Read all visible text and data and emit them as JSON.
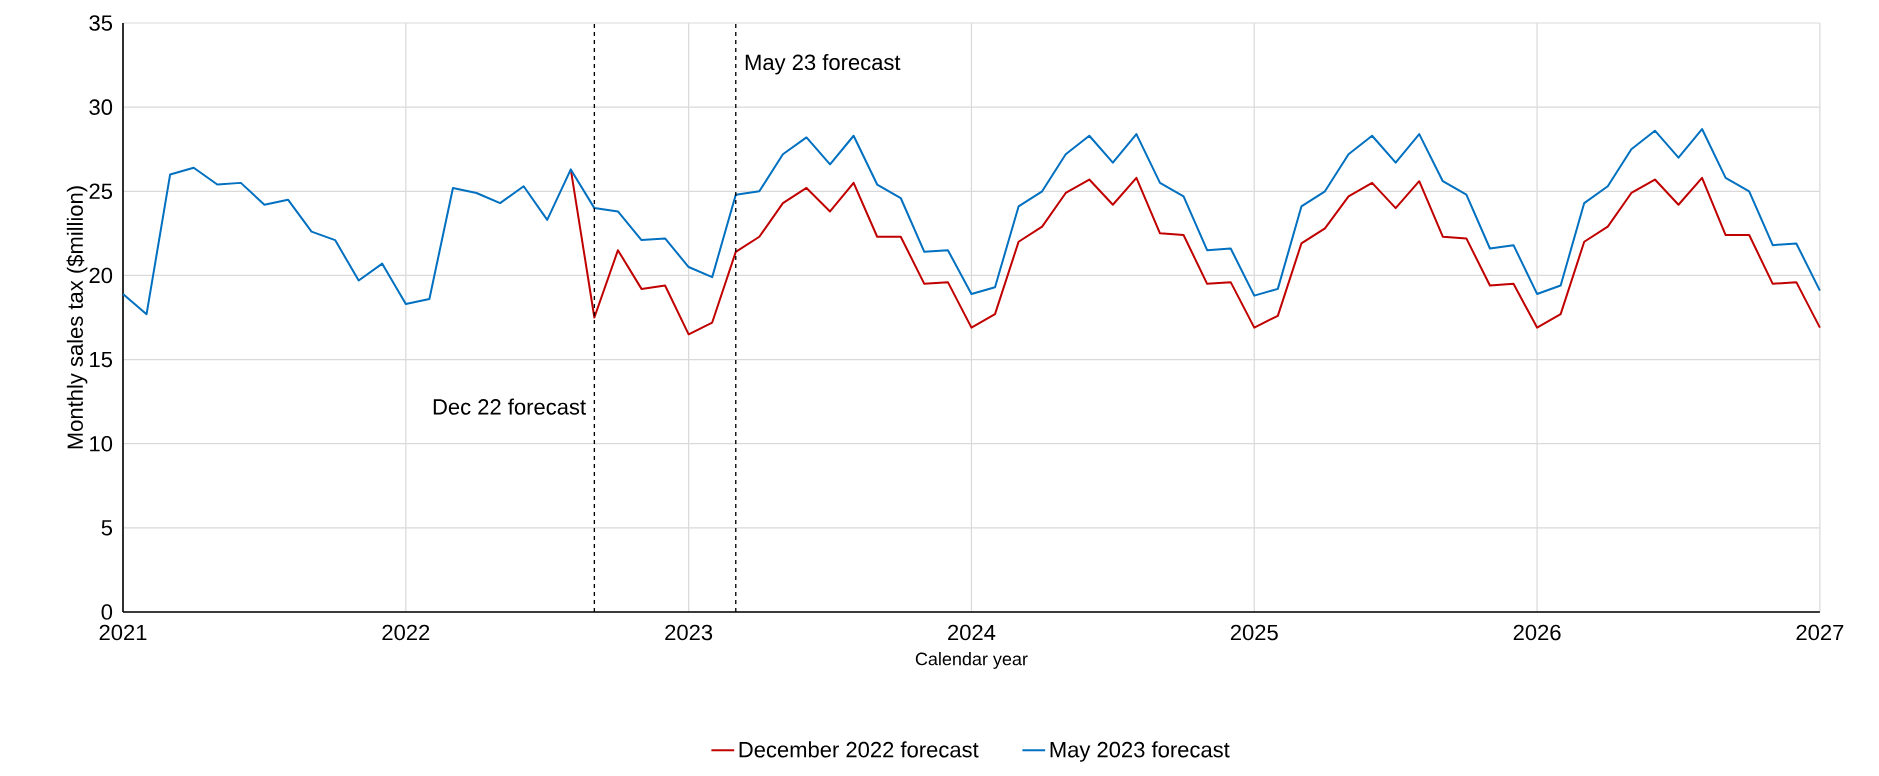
{
  "chart_data": {
    "type": "line",
    "xlabel": "Calendar year",
    "ylabel": "Monthly sales tax ($million)",
    "xlim": [
      "2021-01",
      "2027-01"
    ],
    "xticks": [
      "2021",
      "2022",
      "2023",
      "2024",
      "2025",
      "2026",
      "2027"
    ],
    "ylim": [
      0,
      35
    ],
    "yticks": [
      0,
      5,
      10,
      15,
      20,
      25,
      30,
      35
    ],
    "grid": true,
    "legend": "bottom",
    "ref_lines": [
      {
        "axis": "x",
        "value": "2022-09",
        "label": "Dec 22 forecast",
        "color": "#000000",
        "line_style": "dashed"
      },
      {
        "axis": "x",
        "value": "2023-03",
        "label": "May 23 forecast",
        "color": "#000000",
        "line_style": "dashed"
      }
    ],
    "series": [
      {
        "name": "December 2022 forecast",
        "color": "#c00000",
        "x": [
          "2022-08",
          "2022-09",
          "2022-10",
          "2022-11",
          "2022-12",
          "2023-01",
          "2023-02",
          "2023-03",
          "2023-04",
          "2023-05",
          "2023-06",
          "2023-07",
          "2023-08",
          "2023-09",
          "2023-10",
          "2023-11",
          "2023-12",
          "2024-01",
          "2024-02",
          "2024-03",
          "2024-04",
          "2024-05",
          "2024-06",
          "2024-07",
          "2024-08",
          "2024-09",
          "2024-10",
          "2024-11",
          "2024-12",
          "2025-01",
          "2025-02",
          "2025-03",
          "2025-04",
          "2025-05",
          "2025-06",
          "2025-07",
          "2025-08",
          "2025-09",
          "2025-10",
          "2025-11",
          "2025-12",
          "2026-01",
          "2026-02",
          "2026-03",
          "2026-04",
          "2026-05",
          "2026-06",
          "2026-07",
          "2026-08",
          "2026-09",
          "2026-10",
          "2026-11",
          "2026-12",
          "2027-01"
        ],
        "values": [
          26.3,
          17.5,
          21.5,
          19.2,
          19.4,
          16.5,
          17.2,
          21.4,
          22.3,
          24.3,
          25.2,
          23.8,
          25.5,
          22.3,
          22.3,
          19.5,
          19.6,
          16.9,
          17.7,
          22.0,
          22.9,
          24.9,
          25.7,
          24.2,
          25.8,
          22.5,
          22.4,
          19.5,
          19.6,
          16.9,
          17.6,
          21.9,
          22.8,
          24.7,
          25.5,
          24.0,
          25.6,
          22.3,
          22.2,
          19.4,
          19.5,
          16.9,
          17.7,
          22.0,
          22.9,
          24.9,
          25.7,
          24.2,
          25.8,
          22.4,
          22.4,
          19.5,
          19.6,
          16.9
        ]
      },
      {
        "name": "May 2023 forecast",
        "color": "#0070c0",
        "x": [
          "2021-01",
          "2021-02",
          "2021-03",
          "2021-04",
          "2021-05",
          "2021-06",
          "2021-07",
          "2021-08",
          "2021-09",
          "2021-10",
          "2021-11",
          "2021-12",
          "2022-01",
          "2022-02",
          "2022-03",
          "2022-04",
          "2022-05",
          "2022-06",
          "2022-07",
          "2022-08",
          "2022-09",
          "2022-10",
          "2022-11",
          "2022-12",
          "2023-01",
          "2023-02",
          "2023-03",
          "2023-04",
          "2023-05",
          "2023-06",
          "2023-07",
          "2023-08",
          "2023-09",
          "2023-10",
          "2023-11",
          "2023-12",
          "2024-01",
          "2024-02",
          "2024-03",
          "2024-04",
          "2024-05",
          "2024-06",
          "2024-07",
          "2024-08",
          "2024-09",
          "2024-10",
          "2024-11",
          "2024-12",
          "2025-01",
          "2025-02",
          "2025-03",
          "2025-04",
          "2025-05",
          "2025-06",
          "2025-07",
          "2025-08",
          "2025-09",
          "2025-10",
          "2025-11",
          "2025-12",
          "2026-01",
          "2026-02",
          "2026-03",
          "2026-04",
          "2026-05",
          "2026-06",
          "2026-07",
          "2026-08",
          "2026-09",
          "2026-10",
          "2026-11",
          "2026-12",
          "2027-01"
        ],
        "values": [
          18.9,
          17.7,
          26.0,
          26.4,
          25.4,
          25.5,
          24.2,
          24.5,
          22.6,
          22.1,
          19.7,
          20.7,
          18.3,
          18.6,
          25.2,
          24.9,
          24.3,
          25.3,
          23.3,
          26.3,
          24.0,
          23.8,
          22.1,
          22.2,
          20.5,
          19.9,
          24.8,
          25.0,
          27.2,
          28.2,
          26.6,
          28.3,
          25.4,
          24.6,
          21.4,
          21.5,
          18.9,
          19.3,
          24.1,
          25.0,
          27.2,
          28.3,
          26.7,
          28.4,
          25.5,
          24.7,
          21.5,
          21.6,
          18.8,
          19.2,
          24.1,
          25.0,
          27.2,
          28.3,
          26.7,
          28.4,
          25.6,
          24.8,
          21.6,
          21.8,
          18.9,
          19.4,
          24.3,
          25.3,
          27.5,
          28.6,
          27.0,
          28.7,
          25.8,
          25.0,
          21.8,
          21.9,
          19.1
        ]
      }
    ]
  }
}
